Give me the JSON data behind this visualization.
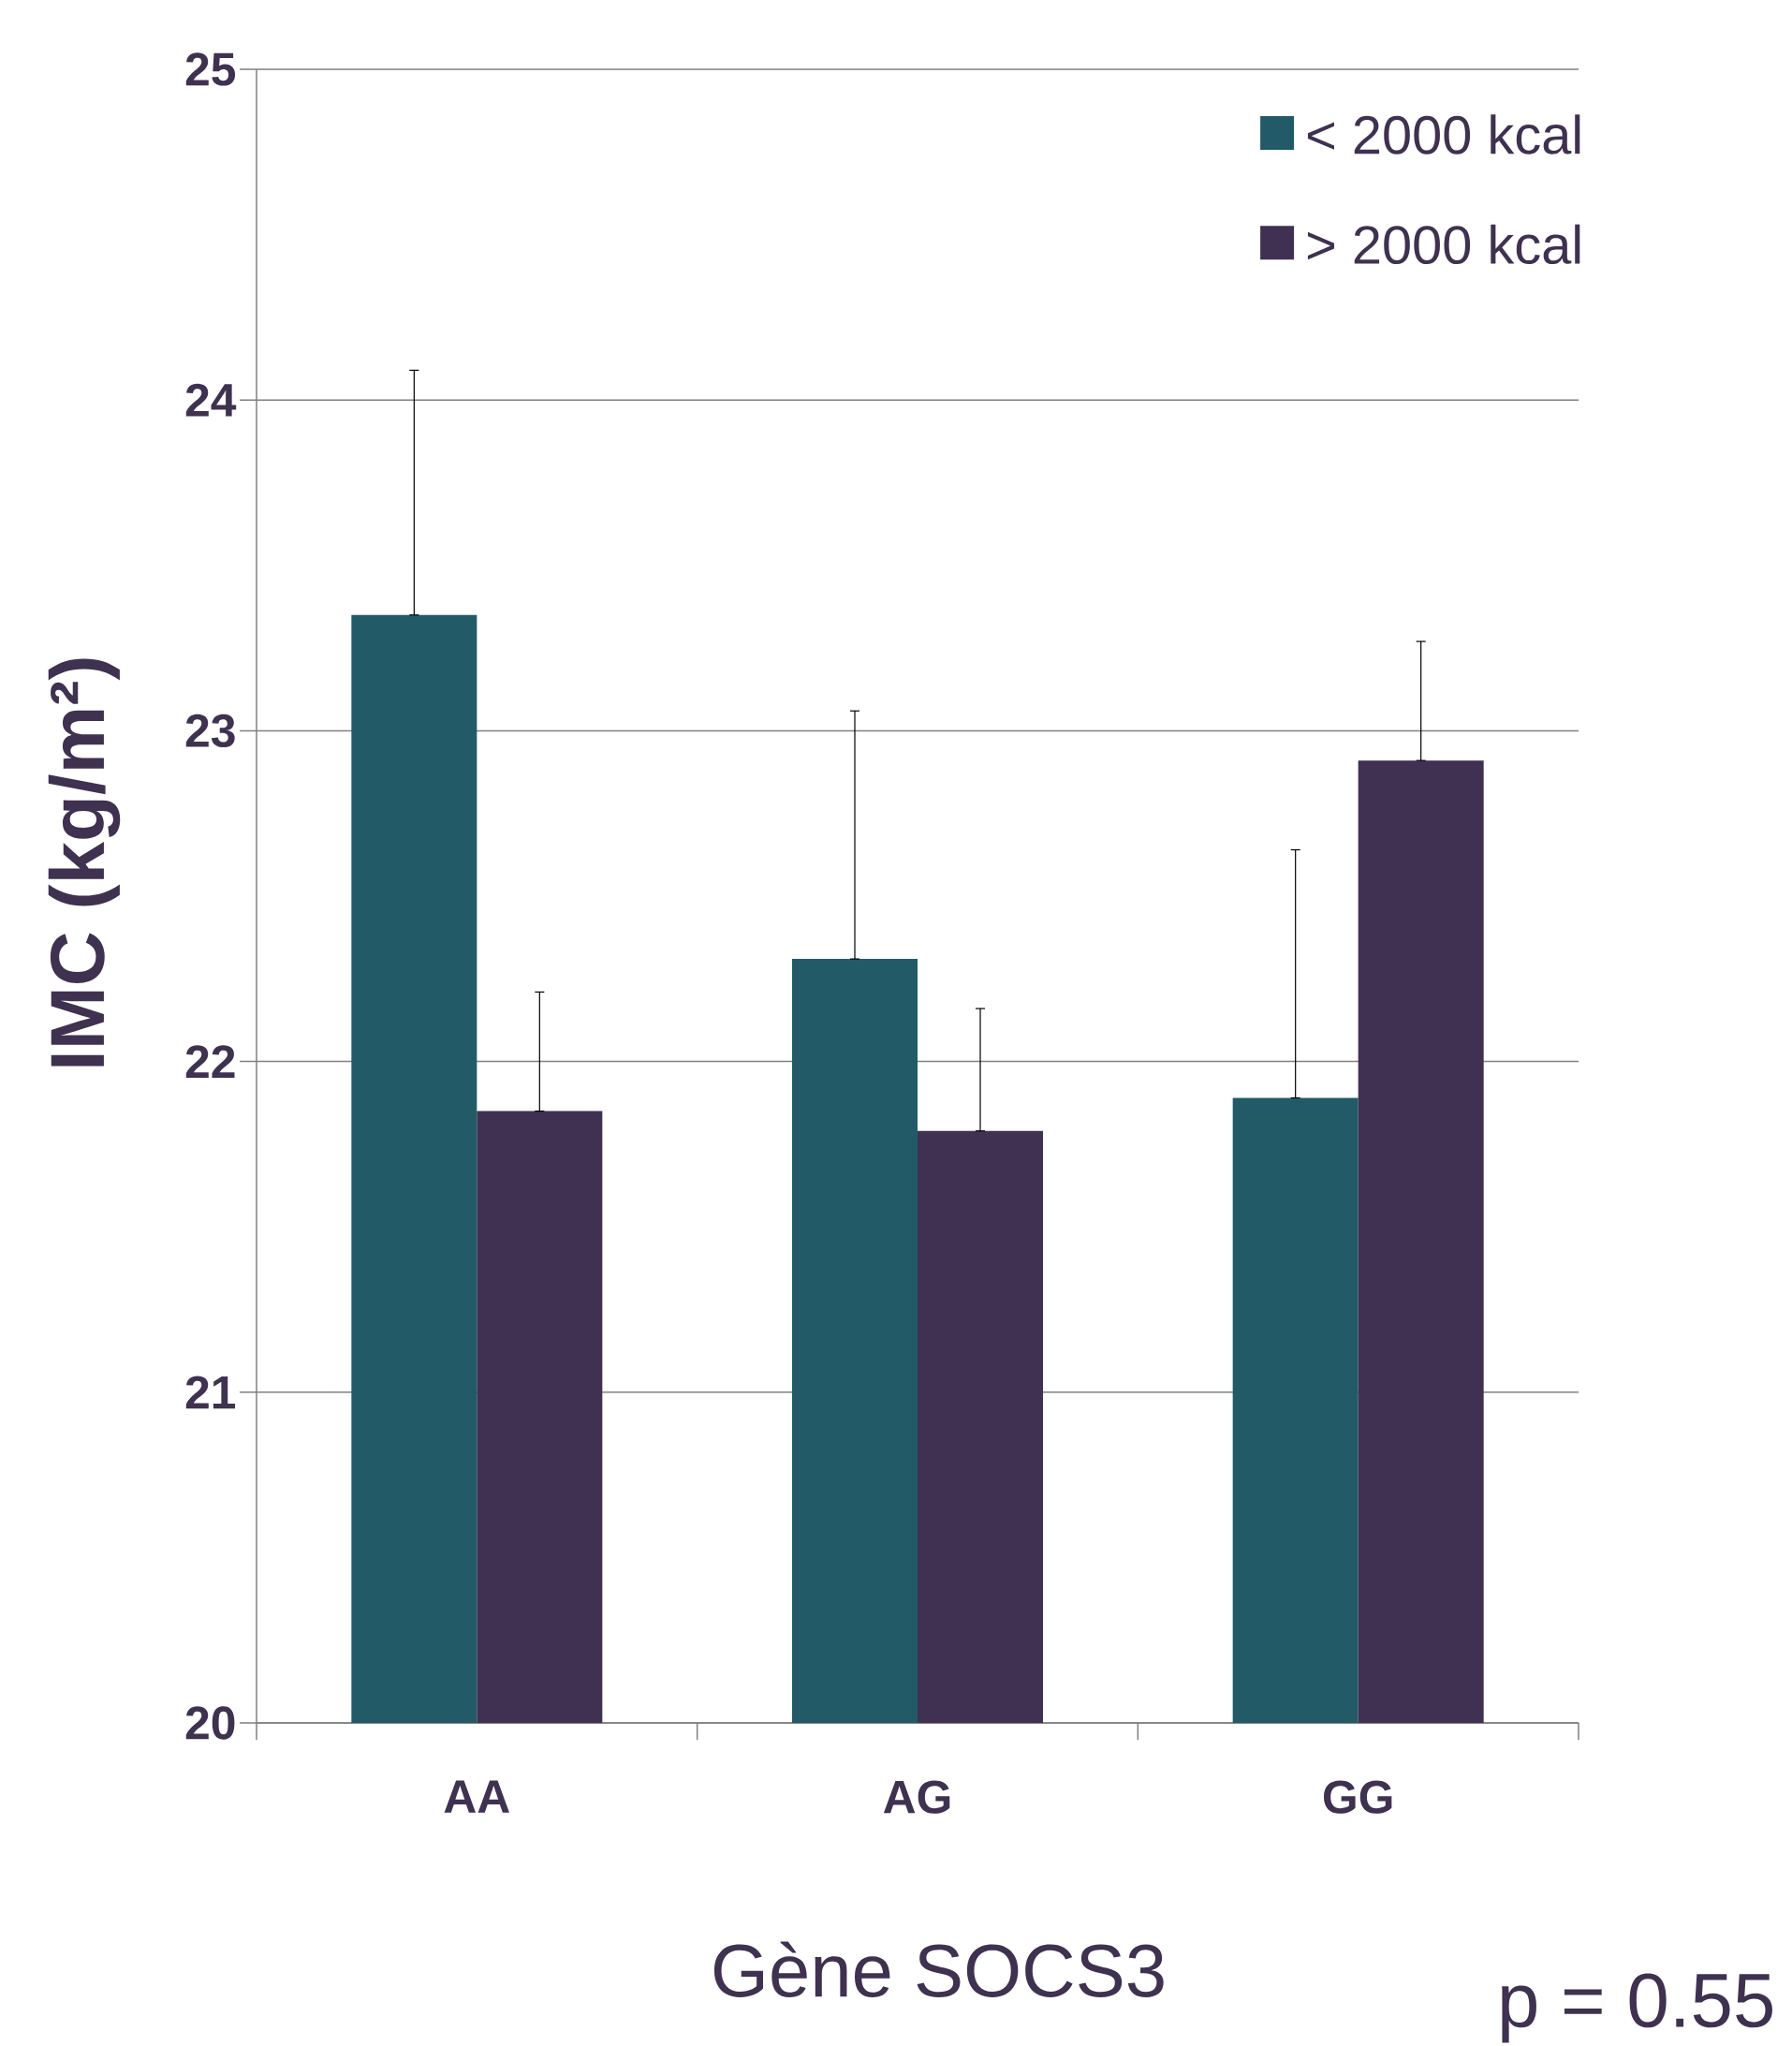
{
  "chart_data": {
    "type": "bar",
    "xlabel": "Gène SOCS3",
    "ylabel": "IMC (kg/m²)",
    "categories": [
      "AA",
      "AG",
      "GG"
    ],
    "series": [
      {
        "name": "< 2000 kcal",
        "color": "#235a68",
        "values": [
          23.35,
          22.31,
          21.89
        ],
        "errors": [
          [
            23.35,
            24.09
          ],
          [
            22.31,
            23.06
          ],
          [
            21.89,
            22.64
          ]
        ]
      },
      {
        "name": "> 2000 kcal",
        "color": "#403152",
        "values": [
          21.85,
          21.79,
          22.91
        ],
        "errors": [
          [
            21.85,
            22.21
          ],
          [
            21.79,
            22.16
          ],
          [
            22.91,
            23.27
          ]
        ]
      }
    ],
    "ylim": [
      20,
      25
    ],
    "yticks": [
      20,
      21,
      22,
      23,
      24,
      25
    ],
    "grid": "y",
    "legend": "top right",
    "annotations": [
      "p = 0.55"
    ]
  }
}
